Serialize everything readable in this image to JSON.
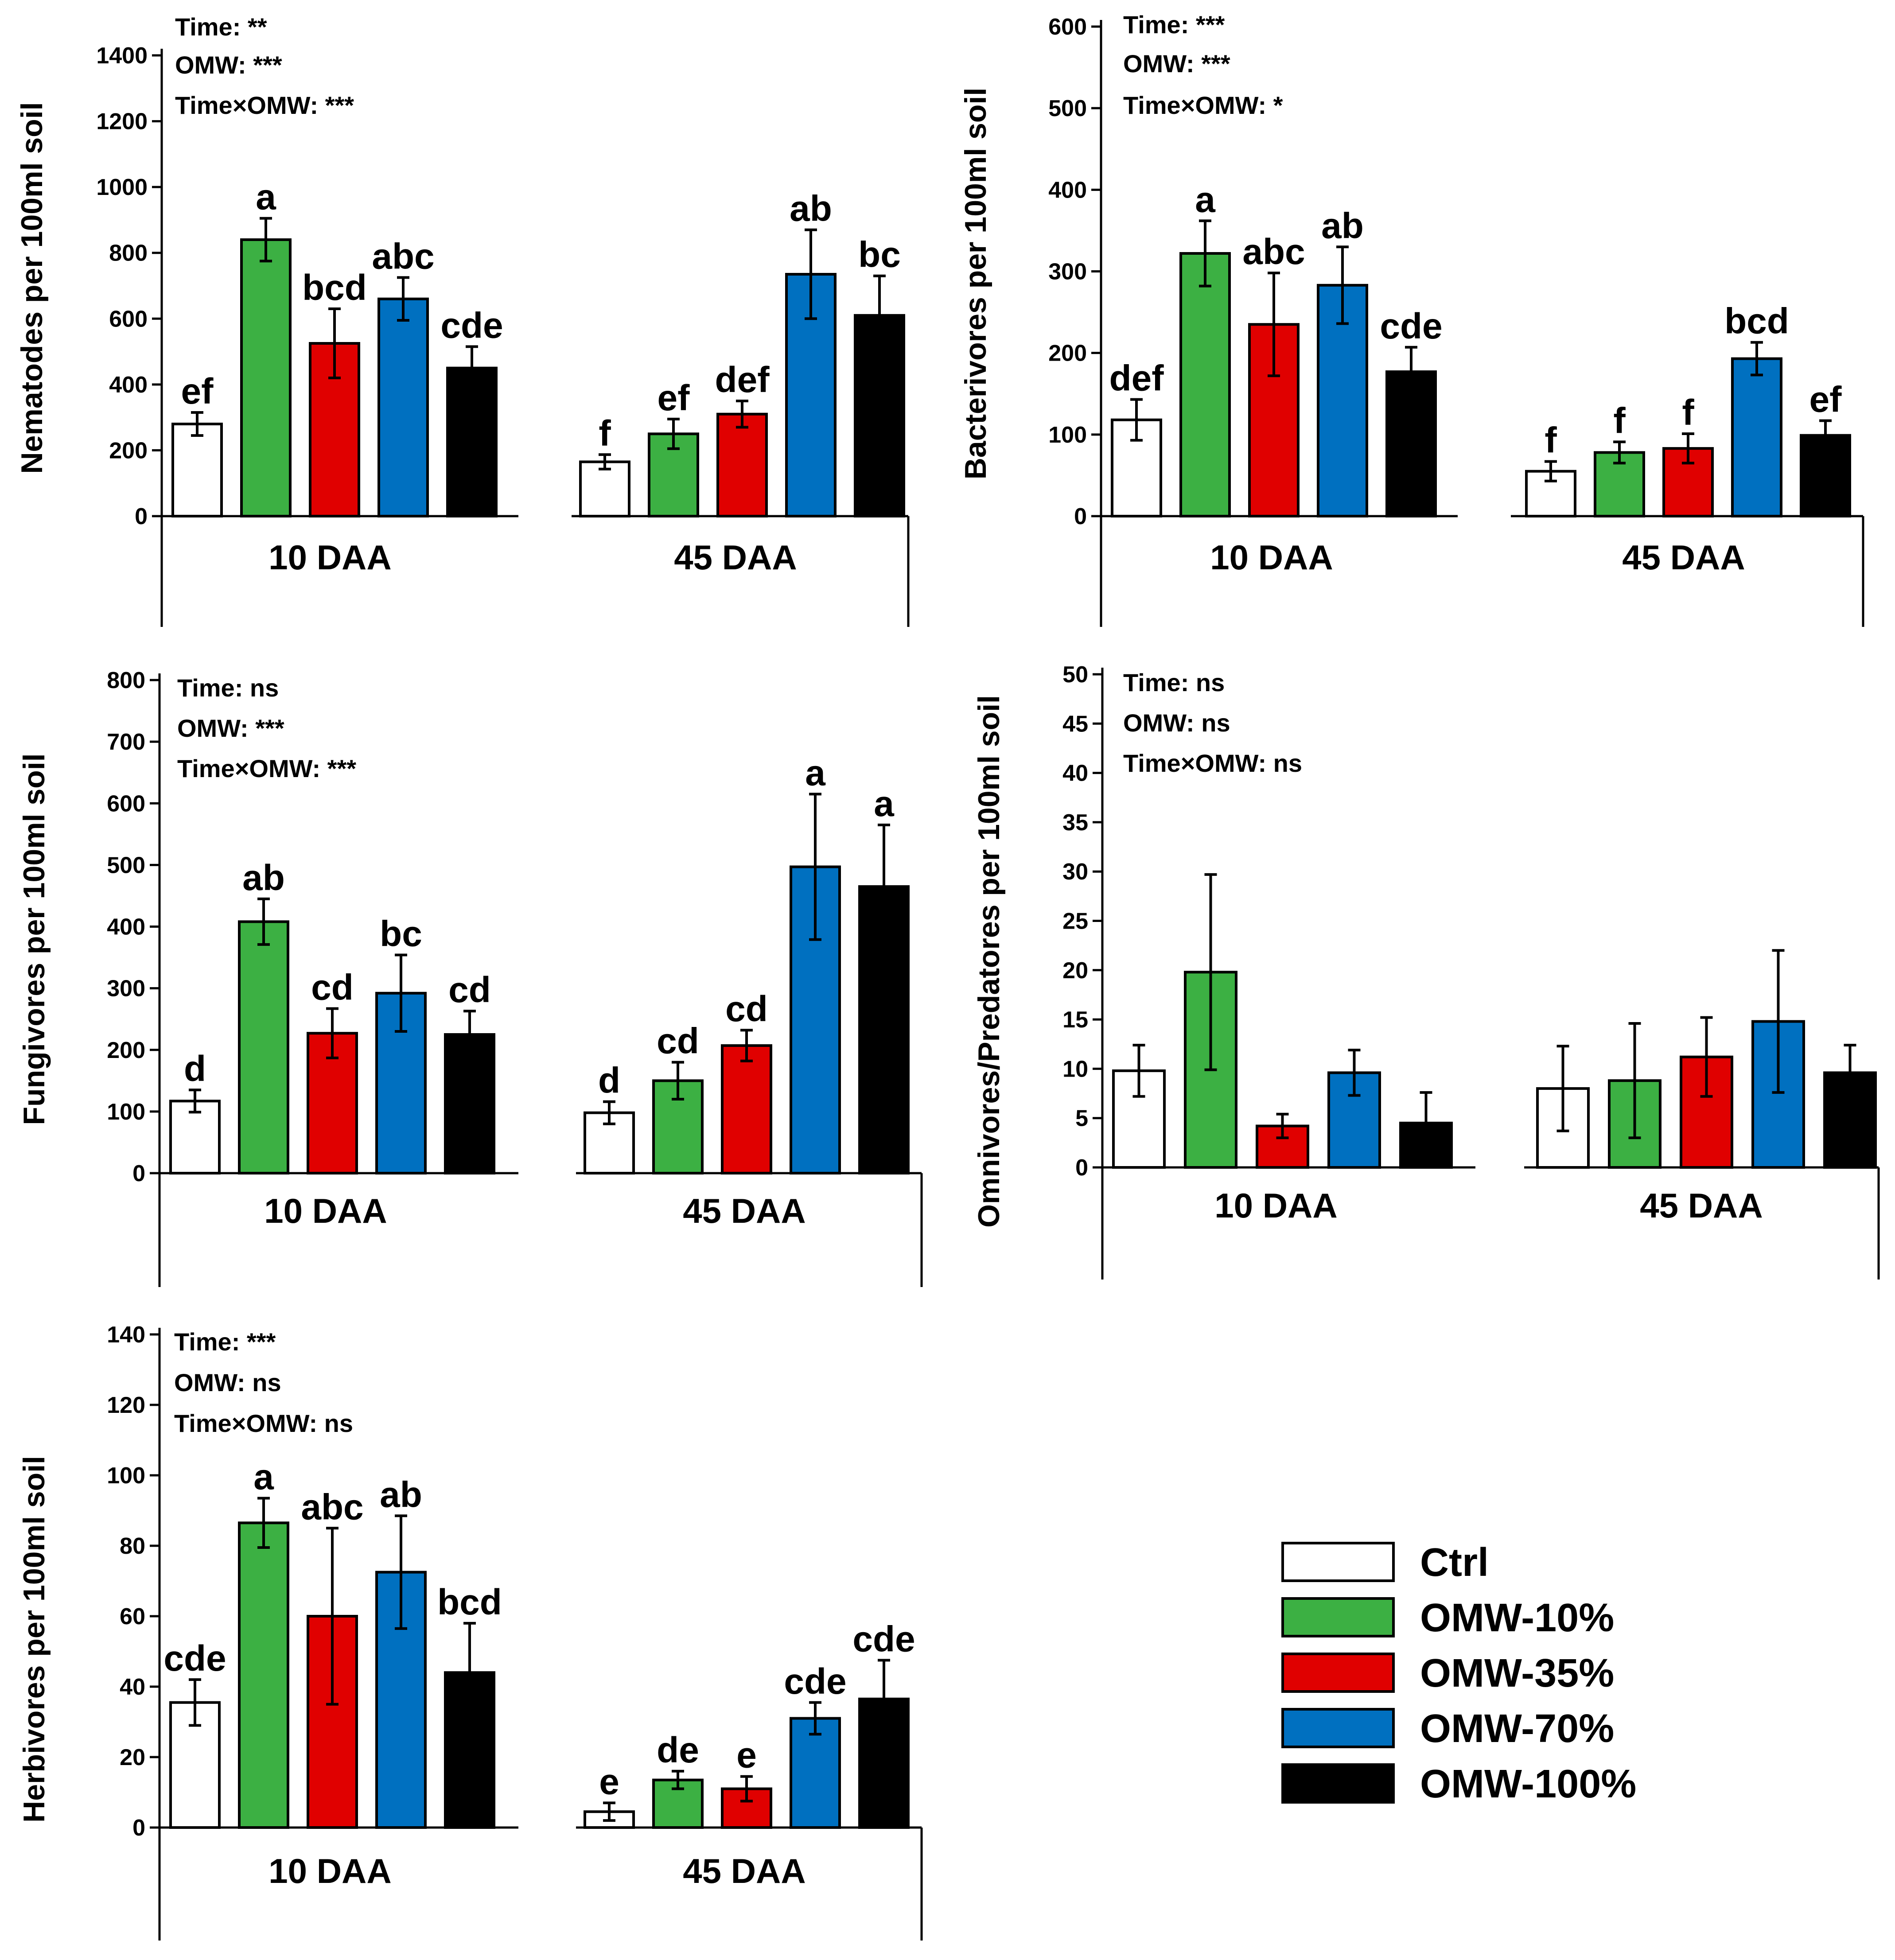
{
  "legend": [
    {
      "label": "Ctrl",
      "color": "#ffffff"
    },
    {
      "label": "OMW-10%",
      "color": "#3cb043"
    },
    {
      "label": "OMW-35%",
      "color": "#e00000"
    },
    {
      "label": "OMW-70%",
      "color": "#0070c0"
    },
    {
      "label": "OMW-100%",
      "color": "#000000"
    }
  ],
  "chart_data": [
    {
      "type": "bar",
      "id": "nematodes",
      "ylabel": "Nematodes per 100ml soil",
      "ylim": [
        0,
        1400
      ],
      "yticks": [
        0,
        200,
        400,
        600,
        800,
        1000,
        1200,
        1400
      ],
      "categories": [
        "10 DAA",
        "45 DAA"
      ],
      "stats": [
        "Time: **",
        "OMW: ***",
        "Time×OMW: ***"
      ],
      "series": [
        {
          "name": "Ctrl",
          "values": [
            280,
            165
          ],
          "errors": [
            35,
            22
          ],
          "letters": [
            "ef",
            "f"
          ]
        },
        {
          "name": "OMW-10%",
          "values": [
            840,
            250
          ],
          "errors": [
            65,
            45
          ],
          "letters": [
            "a",
            "ef"
          ]
        },
        {
          "name": "OMW-35%",
          "values": [
            525,
            310
          ],
          "errors": [
            105,
            40
          ],
          "letters": [
            "bcd",
            "def"
          ]
        },
        {
          "name": "OMW-70%",
          "values": [
            660,
            735
          ],
          "errors": [
            65,
            135
          ],
          "letters": [
            "abc",
            "ab"
          ]
        },
        {
          "name": "OMW-100%",
          "values": [
            450,
            610
          ],
          "errors": [
            65,
            120
          ],
          "letters": [
            "cde",
            "bc"
          ]
        }
      ]
    },
    {
      "type": "bar",
      "id": "bacterivores",
      "ylabel": "Bacterivores per 100ml soil",
      "ylim": [
        0,
        600
      ],
      "yticks": [
        0,
        100,
        200,
        300,
        400,
        500,
        600
      ],
      "categories": [
        "10 DAA",
        "45 DAA"
      ],
      "stats": [
        "Time: ***",
        "OMW: ***",
        "Time×OMW: *"
      ],
      "series": [
        {
          "name": "Ctrl",
          "values": [
            118,
            55
          ],
          "errors": [
            25,
            12
          ],
          "letters": [
            "def",
            "f"
          ]
        },
        {
          "name": "OMW-10%",
          "values": [
            322,
            78
          ],
          "errors": [
            40,
            13
          ],
          "letters": [
            "a",
            "f"
          ]
        },
        {
          "name": "OMW-35%",
          "values": [
            235,
            83
          ],
          "errors": [
            63,
            18
          ],
          "letters": [
            "abc",
            "f"
          ]
        },
        {
          "name": "OMW-70%",
          "values": [
            283,
            193
          ],
          "errors": [
            47,
            20
          ],
          "letters": [
            "ab",
            "bcd"
          ]
        },
        {
          "name": "OMW-100%",
          "values": [
            177,
            99
          ],
          "errors": [
            30,
            18
          ],
          "letters": [
            "cde",
            "ef"
          ]
        }
      ]
    },
    {
      "type": "bar",
      "id": "fungivores",
      "ylabel": "Fungivores per 100ml soil",
      "ylim": [
        0,
        800
      ],
      "yticks": [
        0,
        100,
        200,
        300,
        400,
        500,
        600,
        700,
        800
      ],
      "categories": [
        "10 DAA",
        "45 DAA"
      ],
      "stats": [
        "Time: ns",
        "OMW: ***",
        "Time×OMW: ***"
      ],
      "series": [
        {
          "name": "Ctrl",
          "values": [
            117,
            98
          ],
          "errors": [
            18,
            18
          ],
          "letters": [
            "d",
            "d"
          ]
        },
        {
          "name": "OMW-10%",
          "values": [
            408,
            150
          ],
          "errors": [
            37,
            30
          ],
          "letters": [
            "ab",
            "cd"
          ]
        },
        {
          "name": "OMW-35%",
          "values": [
            227,
            207
          ],
          "errors": [
            40,
            25
          ],
          "letters": [
            "cd",
            "cd"
          ]
        },
        {
          "name": "OMW-70%",
          "values": [
            292,
            497
          ],
          "errors": [
            62,
            118
          ],
          "letters": [
            "bc",
            "a"
          ]
        },
        {
          "name": "OMW-100%",
          "values": [
            225,
            465
          ],
          "errors": [
            38,
            100
          ],
          "letters": [
            "cd",
            "a"
          ]
        }
      ]
    },
    {
      "type": "bar",
      "id": "omnivores",
      "ylabel": "Omnivores/Predatores per 100ml soil",
      "ylim": [
        0,
        50
      ],
      "yticks": [
        0,
        5,
        10,
        15,
        20,
        25,
        30,
        35,
        40,
        45,
        50
      ],
      "categories": [
        "10 DAA",
        "45 DAA"
      ],
      "stats": [
        "Time: ns",
        "OMW: ns",
        "Time×OMW: ns"
      ],
      "series": [
        {
          "name": "Ctrl",
          "values": [
            9.8,
            8.0
          ],
          "errors": [
            2.6,
            4.3
          ],
          "letters": [
            "",
            ""
          ]
        },
        {
          "name": "OMW-10%",
          "values": [
            19.8,
            8.8
          ],
          "errors": [
            9.9,
            5.8
          ],
          "letters": [
            "",
            ""
          ]
        },
        {
          "name": "OMW-35%",
          "values": [
            4.2,
            11.2
          ],
          "errors": [
            1.2,
            4.0
          ],
          "letters": [
            "",
            ""
          ]
        },
        {
          "name": "OMW-70%",
          "values": [
            9.6,
            14.8
          ],
          "errors": [
            2.3,
            7.2
          ],
          "letters": [
            "",
            ""
          ]
        },
        {
          "name": "OMW-100%",
          "values": [
            4.5,
            9.6
          ],
          "errors": [
            3.1,
            2.8
          ],
          "letters": [
            "",
            ""
          ]
        }
      ]
    },
    {
      "type": "bar",
      "id": "herbivores",
      "ylabel": "Herbivores per 100ml soil",
      "ylim": [
        0,
        140
      ],
      "yticks": [
        0,
        20,
        40,
        60,
        80,
        100,
        120,
        140
      ],
      "categories": [
        "10 DAA",
        "45 DAA"
      ],
      "stats": [
        "Time: ***",
        "OMW: ns",
        "Time×OMW: ns"
      ],
      "series": [
        {
          "name": "Ctrl",
          "values": [
            35.5,
            4.5
          ],
          "errors": [
            6.5,
            2.5
          ],
          "letters": [
            "cde",
            "e"
          ]
        },
        {
          "name": "OMW-10%",
          "values": [
            86.5,
            13.5
          ],
          "errors": [
            7,
            2.5
          ],
          "letters": [
            "a",
            "de"
          ]
        },
        {
          "name": "OMW-35%",
          "values": [
            60,
            11
          ],
          "errors": [
            25,
            3.5
          ],
          "letters": [
            "abc",
            "e"
          ]
        },
        {
          "name": "OMW-70%",
          "values": [
            72.5,
            31
          ],
          "errors": [
            16,
            4.5
          ],
          "letters": [
            "ab",
            "cde"
          ]
        },
        {
          "name": "OMW-100%",
          "values": [
            44,
            36.5
          ],
          "errors": [
            14,
            11
          ],
          "letters": [
            "bcd",
            "cde"
          ]
        }
      ]
    }
  ]
}
